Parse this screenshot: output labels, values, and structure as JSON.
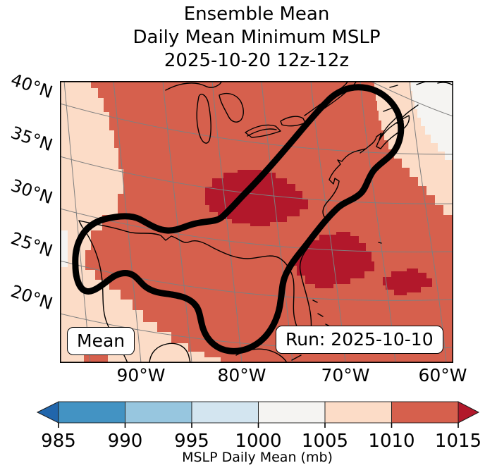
{
  "figure": {
    "title_lines": [
      "Ensemble Mean",
      "Daily Mean Minimum MSLP",
      "2025-10-20 12z-12z"
    ]
  },
  "map": {
    "corner_label": "Mean",
    "run_label": "Run: 2025-10-10",
    "lat_labels": [
      "40°N",
      "35°N",
      "30°N",
      "25°N",
      "20°N"
    ],
    "lon_labels": [
      "90°W",
      "80°W",
      "70°W",
      "60°W"
    ]
  },
  "colorbar": {
    "label": "MSLP Daily Mean (mb)",
    "ticks": [
      "985",
      "990",
      "995",
      "1000",
      "1005",
      "1010",
      "1015"
    ],
    "bin_colors": [
      "#4393c3",
      "#97c6df",
      "#d3e5f0",
      "#f5f4f2",
      "#fcdcc7",
      "#d6604d"
    ],
    "under_color": "#2166ac",
    "over_color": "#b2182b"
  },
  "map_colors": {
    "dominant_fill": "#d6604d",
    "over_fill": "#b2182b",
    "peach_fill": "#fcdcc7",
    "white_fill": "#f5f4f2",
    "graticule": "#7f7f7f",
    "coastline": "#000000",
    "contour": "#000000"
  },
  "chart_data": {
    "type": "heatmap",
    "title": "Ensemble Mean Daily Mean Minimum MSLP 2025-10-20 12z-12z",
    "variable": "MSLP Daily Mean (mb)",
    "colorbar": {
      "ticks": [
        985,
        990,
        995,
        1000,
        1005,
        1010,
        1015
      ],
      "bin_edges_mb": [
        985,
        990,
        995,
        1000,
        1005,
        1010,
        1015
      ],
      "extend": "both",
      "bin_colors": [
        "#4393c3",
        "#97c6df",
        "#d3e5f0",
        "#f5f4f2",
        "#fcdcc7",
        "#d6604d"
      ],
      "under_color": "#2166ac",
      "over_color": "#b2182b"
    },
    "x_axis": {
      "ticks": [
        "90°W",
        "80°W",
        "70°W",
        "60°W"
      ]
    },
    "y_axis": {
      "ticks": [
        "40°N",
        "35°N",
        "30°N",
        "25°N",
        "20°N"
      ]
    },
    "annotations": [
      "Mean",
      "Run: 2025-10-10"
    ],
    "regions": [
      {
        "value_range_mb": "1010-1015",
        "color": "#d6604d",
        "coverage": "dominant fill over most of the eastern North America / western Atlantic domain"
      },
      {
        "value_range_mb": ">1015",
        "color": "#b2182b",
        "coverage": "patches over the Mid-Atlantic states, offshore of the southeast US coast, and a small area near 24N 62W"
      },
      {
        "value_range_mb": "1005-1010",
        "color": "#fcdcc7",
        "coverage": "western edge of domain, southwest Gulf/Mexico corner, and far northeast corner near Nova Scotia"
      },
      {
        "value_range_mb": "1000-1005",
        "color": "#f5f4f2",
        "coverage": "extreme northeast corner and thin slivers along the west edge"
      }
    ],
    "overlay": "thick black closed contour enclosing the Gulf of Mexico and the US East Coast corridor northeast to Nova Scotia"
  }
}
